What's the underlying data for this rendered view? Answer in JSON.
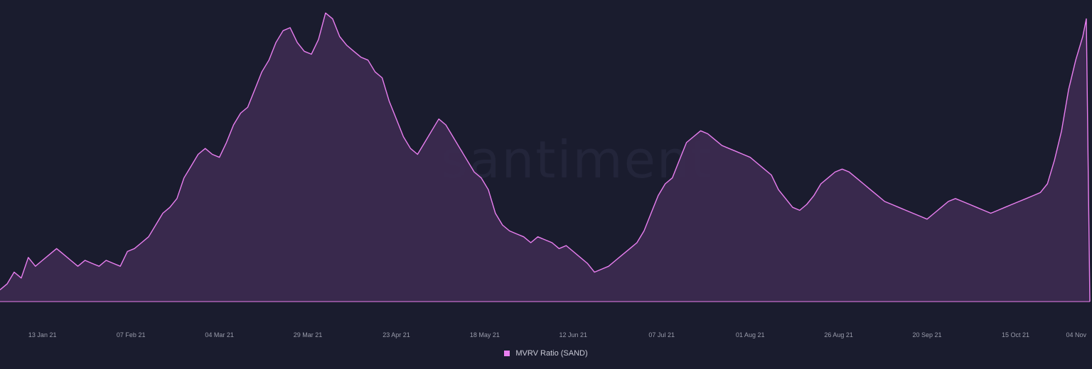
{
  "watermark": "santiment",
  "colors": {
    "line": "#e97ff0",
    "fill": "#3b2a4f",
    "background": "#1a1c2e"
  },
  "chart_data": {
    "type": "area",
    "legend": [
      {
        "name": "MVRV Ratio (SAND)",
        "color": "#e97ff0"
      }
    ],
    "legend_position": "bottom-center",
    "grid": false,
    "x_ticks": [
      {
        "label": "13 Jan 21",
        "day": 12
      },
      {
        "label": "07 Feb 21",
        "day": 37
      },
      {
        "label": "04 Mar 21",
        "day": 62
      },
      {
        "label": "29 Mar 21",
        "day": 87
      },
      {
        "label": "23 Apr 21",
        "day": 112
      },
      {
        "label": "18 May 21",
        "day": 137
      },
      {
        "label": "12 Jun 21",
        "day": 162
      },
      {
        "label": "07 Jul 21",
        "day": 187
      },
      {
        "label": "01 Aug 21",
        "day": 212
      },
      {
        "label": "26 Aug 21",
        "day": 237
      },
      {
        "label": "20 Sep 21",
        "day": 262
      },
      {
        "label": "15 Oct 21",
        "day": 287
      },
      {
        "label": "04 Nov",
        "day": 307
      }
    ],
    "ylim": [
      0,
      100
    ],
    "series": [
      {
        "name": "MVRV Ratio (SAND)",
        "points": [
          [
            0,
            4
          ],
          [
            2,
            6
          ],
          [
            4,
            10
          ],
          [
            6,
            8
          ],
          [
            8,
            15
          ],
          [
            10,
            12
          ],
          [
            12,
            14
          ],
          [
            14,
            16
          ],
          [
            16,
            18
          ],
          [
            18,
            16
          ],
          [
            20,
            14
          ],
          [
            22,
            12
          ],
          [
            24,
            14
          ],
          [
            26,
            13
          ],
          [
            28,
            12
          ],
          [
            30,
            14
          ],
          [
            32,
            13
          ],
          [
            34,
            12
          ],
          [
            36,
            17
          ],
          [
            38,
            18
          ],
          [
            40,
            20
          ],
          [
            42,
            22
          ],
          [
            44,
            26
          ],
          [
            46,
            30
          ],
          [
            48,
            32
          ],
          [
            50,
            35
          ],
          [
            52,
            42
          ],
          [
            54,
            46
          ],
          [
            56,
            50
          ],
          [
            58,
            52
          ],
          [
            60,
            50
          ],
          [
            62,
            49
          ],
          [
            64,
            54
          ],
          [
            66,
            60
          ],
          [
            68,
            64
          ],
          [
            70,
            66
          ],
          [
            72,
            72
          ],
          [
            74,
            78
          ],
          [
            76,
            82
          ],
          [
            78,
            88
          ],
          [
            80,
            92
          ],
          [
            82,
            93
          ],
          [
            84,
            88
          ],
          [
            86,
            85
          ],
          [
            88,
            84
          ],
          [
            90,
            89
          ],
          [
            92,
            98
          ],
          [
            94,
            96
          ],
          [
            96,
            90
          ],
          [
            98,
            87
          ],
          [
            100,
            85
          ],
          [
            102,
            83
          ],
          [
            104,
            82
          ],
          [
            106,
            78
          ],
          [
            108,
            76
          ],
          [
            110,
            68
          ],
          [
            112,
            62
          ],
          [
            114,
            56
          ],
          [
            116,
            52
          ],
          [
            118,
            50
          ],
          [
            120,
            54
          ],
          [
            122,
            58
          ],
          [
            124,
            62
          ],
          [
            126,
            60
          ],
          [
            128,
            56
          ],
          [
            130,
            52
          ],
          [
            132,
            48
          ],
          [
            134,
            44
          ],
          [
            136,
            42
          ],
          [
            138,
            38
          ],
          [
            140,
            30
          ],
          [
            142,
            26
          ],
          [
            144,
            24
          ],
          [
            146,
            23
          ],
          [
            148,
            22
          ],
          [
            150,
            20
          ],
          [
            152,
            22
          ],
          [
            154,
            21
          ],
          [
            156,
            20
          ],
          [
            158,
            18
          ],
          [
            160,
            19
          ],
          [
            162,
            17
          ],
          [
            164,
            15
          ],
          [
            166,
            13
          ],
          [
            168,
            10
          ],
          [
            170,
            11
          ],
          [
            172,
            12
          ],
          [
            174,
            14
          ],
          [
            176,
            16
          ],
          [
            178,
            18
          ],
          [
            180,
            20
          ],
          [
            182,
            24
          ],
          [
            184,
            30
          ],
          [
            186,
            36
          ],
          [
            188,
            40
          ],
          [
            190,
            42
          ],
          [
            192,
            48
          ],
          [
            194,
            54
          ],
          [
            196,
            56
          ],
          [
            198,
            58
          ],
          [
            200,
            57
          ],
          [
            202,
            55
          ],
          [
            204,
            53
          ],
          [
            206,
            52
          ],
          [
            208,
            51
          ],
          [
            210,
            50
          ],
          [
            212,
            49
          ],
          [
            214,
            47
          ],
          [
            216,
            45
          ],
          [
            218,
            43
          ],
          [
            220,
            38
          ],
          [
            222,
            35
          ],
          [
            224,
            32
          ],
          [
            226,
            31
          ],
          [
            228,
            33
          ],
          [
            230,
            36
          ],
          [
            232,
            40
          ],
          [
            234,
            42
          ],
          [
            236,
            44
          ],
          [
            238,
            45
          ],
          [
            240,
            44
          ],
          [
            242,
            42
          ],
          [
            244,
            40
          ],
          [
            246,
            38
          ],
          [
            248,
            36
          ],
          [
            250,
            34
          ],
          [
            252,
            33
          ],
          [
            254,
            32
          ],
          [
            256,
            31
          ],
          [
            258,
            30
          ],
          [
            260,
            29
          ],
          [
            262,
            28
          ],
          [
            264,
            30
          ],
          [
            266,
            32
          ],
          [
            268,
            34
          ],
          [
            270,
            35
          ],
          [
            272,
            34
          ],
          [
            274,
            33
          ],
          [
            276,
            32
          ],
          [
            278,
            31
          ],
          [
            280,
            30
          ],
          [
            282,
            31
          ],
          [
            284,
            32
          ],
          [
            286,
            33
          ],
          [
            288,
            34
          ],
          [
            290,
            35
          ],
          [
            292,
            36
          ],
          [
            294,
            37
          ],
          [
            296,
            40
          ],
          [
            298,
            48
          ],
          [
            300,
            58
          ],
          [
            302,
            72
          ],
          [
            304,
            82
          ],
          [
            306,
            90
          ],
          [
            307,
            96
          ],
          [
            308,
            0
          ]
        ]
      }
    ]
  }
}
